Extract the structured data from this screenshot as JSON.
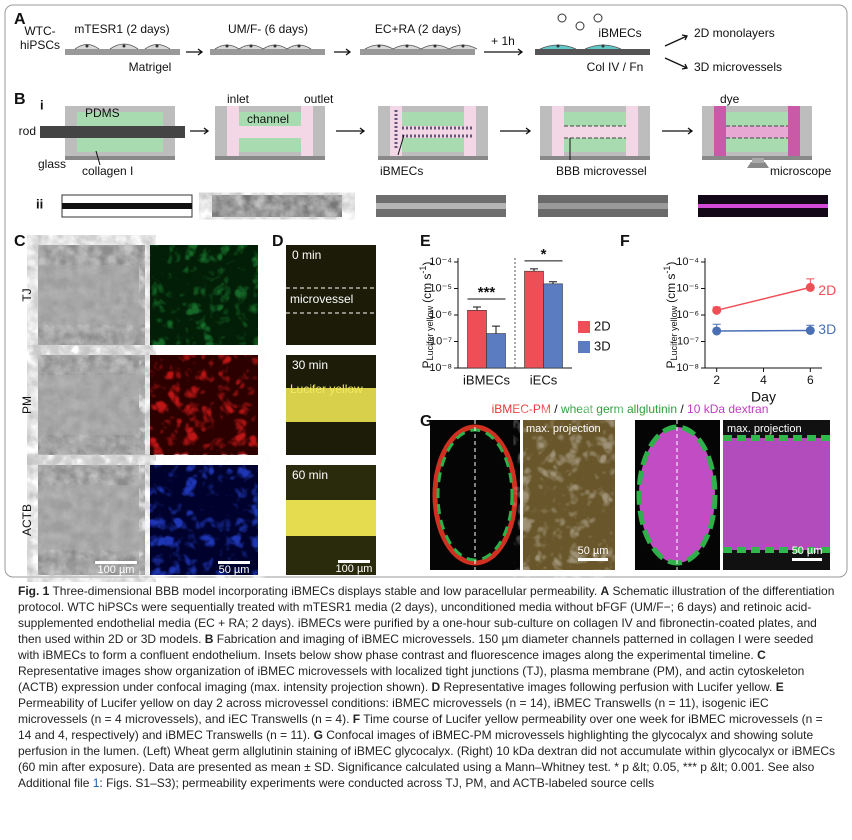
{
  "panels": {
    "A": {
      "label": "A",
      "cells": [
        "WTC-",
        "hiPSCs"
      ],
      "steps": [
        "mTESR1 (2 days)",
        "UM/F- (6 days)",
        "EC+RA (2 days)"
      ],
      "substrate": "Matrigel",
      "time": "+ 1h",
      "purified": "iBMECs",
      "coating": "Col IV / Fn",
      "outputs": [
        "2D monolayers",
        "3D microvessels"
      ]
    },
    "B": {
      "label": "B",
      "row_labels": [
        "i",
        "ii"
      ],
      "texts": {
        "pdms": "PDMS",
        "rod": "rod",
        "glass": "glass",
        "collagen": "collagen I",
        "inlet": "inlet",
        "outlet": "outlet",
        "channel": "channel",
        "cells": "iBMECs",
        "vessel": "BBB microvessel",
        "dye": "dye",
        "microscope": "microscope"
      }
    },
    "C": {
      "label": "C",
      "rows": [
        "TJ",
        "PM",
        "ACTB"
      ],
      "scale_bars": [
        "100 µm",
        "50 µm"
      ]
    },
    "D": {
      "label": "D",
      "times": [
        "0 min",
        "30 min",
        "60 min"
      ],
      "vessel": "microvessel",
      "dye": "Lucifer yellow",
      "scale_bar": "100 µm"
    },
    "E": {
      "type": "bar",
      "label": "E",
      "log": true,
      "ylabel": {
        "main": "P",
        "sub": "Lucifer yellow",
        "unit": "(cm s",
        "sup": "-1",
        "close": ")"
      },
      "ylim": [
        1e-08,
        0.0001
      ],
      "yticks": [
        {
          "value": 1e-08,
          "label": "10⁻⁸"
        },
        {
          "value": 1e-07,
          "label": "10⁻⁷"
        },
        {
          "value": 1e-06,
          "label": "10⁻⁶"
        },
        {
          "value": 1e-05,
          "label": "10⁻⁵"
        },
        {
          "value": 0.0001,
          "label": "10⁻⁴"
        }
      ],
      "categories": [
        "iBMECs",
        "iECs"
      ],
      "series": [
        {
          "name": "2D",
          "color": "#f04e57",
          "values": [
            1.5e-06,
            4.5e-05
          ],
          "errors": [
            5e-07,
            1e-05
          ]
        },
        {
          "name": "3D",
          "color": "#5b7cc0",
          "values": [
            2e-07,
            1.5e-05
          ],
          "errors": [
            1.8e-07,
            3e-06
          ]
        }
      ],
      "significance": [
        "***",
        "*"
      ]
    },
    "F": {
      "type": "line",
      "label": "F",
      "log": true,
      "ylabel": {
        "main": "P",
        "sub": "Lucifer yellow",
        "unit": "(cm s",
        "sup": "-1",
        "close": ")"
      },
      "xlabel": "Day",
      "x": [
        2,
        6
      ],
      "xlim": [
        1.5,
        6.5
      ],
      "xticks": [
        2,
        4,
        6
      ],
      "ylim": [
        1e-08,
        0.0001
      ],
      "yticks": [
        {
          "value": 1e-08,
          "label": "10⁻⁸"
        },
        {
          "value": 1e-07,
          "label": "10⁻⁷"
        },
        {
          "value": 1e-06,
          "label": "10⁻⁶"
        },
        {
          "value": 1e-05,
          "label": "10⁻⁵"
        },
        {
          "value": 0.0001,
          "label": "10⁻⁴"
        }
      ],
      "series": [
        {
          "name": "2D",
          "color": "#f04e57",
          "values": [
            1.5e-06,
            1.1e-05
          ],
          "errors": [
            5e-07,
            1.2e-05
          ]
        },
        {
          "name": "3D",
          "color": "#4a6fb5",
          "values": [
            2.5e-07,
            2.6e-07
          ],
          "errors": [
            2e-07,
            1.5e-07
          ]
        }
      ]
    },
    "G": {
      "label": "G",
      "title": [
        {
          "text": "iBMEC-PM",
          "color": "#e53935"
        },
        {
          "text": " / "
        },
        {
          "text": "wheat germ allglutinin",
          "color": "#2e9e3e"
        },
        {
          "text": " / "
        },
        {
          "text": "10 kDa dextran",
          "color": "#c23cc0"
        }
      ],
      "projection": [
        "max. projection",
        "max. projection"
      ],
      "scale_bars": [
        "50 µm",
        "50 µm"
      ]
    }
  },
  "caption": [
    {
      "text": "Fig. 1",
      "style": "bold"
    },
    {
      "text": " Three-dimensional BBB model incorporating iBMECs displays stable and low paracellular permeability. "
    },
    {
      "text": "A",
      "style": "bold"
    },
    {
      "text": " Schematic illustration of the differentiation protocol. WTC hiPSCs were sequentially treated with mTESR1 media (2 days), unconditioned media without bFGF (UM/F−; 6 days) and retinoic acid-supplemented endothelial media (EC + RA; 2 days). iBMECs were purified by a one-hour sub-culture on collagen IV and fibronectin-coated plates, and then used within 2D or 3D models. "
    },
    {
      "text": "B",
      "style": "bold"
    },
    {
      "text": " Fabrication and imaging of iBMEC microvessels. 150 µm diameter channels patterned in collagen I were seeded with iBMECs to form a confluent endothelium. Insets below show phase contrast and fluorescence images along the experimental timeline. "
    },
    {
      "text": "C",
      "style": "bold"
    },
    {
      "text": " Representative images show organization of iBMEC microvessels with localized tight junctions (TJ), plasma membrane (PM), and actin cytoskeleton (ACTB) expression under confocal imaging (max. intensity projection shown). "
    },
    {
      "text": "D",
      "style": "bold"
    },
    {
      "text": " Representative images following perfusion with Lucifer yellow. "
    },
    {
      "text": "E",
      "style": "bold"
    },
    {
      "text": " Permeability of Lucifer yellow on day 2 across microvessel conditions: iBMEC microvessels (n = 14), iBMEC Transwells (n = 11), isogenic iEC microvessels (n = 4 microvessels), and iEC Transwells (n = 4). "
    },
    {
      "text": "F",
      "style": "bold"
    },
    {
      "text": " Time course of Lucifer yellow permeability over one week for iBMEC microvessels (n = 14 and 4, respectively) and iBMEC Transwells (n = 11). "
    },
    {
      "text": "G",
      "style": "bold"
    },
    {
      "text": " Confocal images of iBMEC-PM microvessels highlighting the glycocalyx and showing solute perfusion in the lumen. (Left) Wheat germ allglutinin staining of iBMEC glycocalyx. (Right) 10 kDa dextran did not accumulate within glycocalyx or iBMECs (60 min after exposure). Data are presented as mean ± SD. Significance calculated using a Mann–Whitney test. * p &lt; 0.05, *** p &lt; 0.001. See also Additional file "
    },
    {
      "text": "1",
      "style": "link"
    },
    {
      "text": ": Figs. S1–S3); permeability experiments were conducted across TJ, PM, and ACTB-labeled source cells"
    }
  ]
}
